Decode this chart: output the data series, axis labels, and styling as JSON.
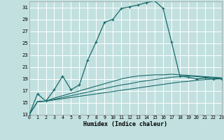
{
  "title": "",
  "xlabel": "Humidex (Indice chaleur)",
  "bg_color": "#c2e0e0",
  "grid_color": "#ffffff",
  "line_color": "#1a6b6b",
  "xlim": [
    0,
    23
  ],
  "ylim": [
    13,
    32
  ],
  "yticks": [
    13,
    15,
    17,
    19,
    21,
    23,
    25,
    27,
    29,
    31
  ],
  "xticks": [
    0,
    1,
    2,
    3,
    4,
    5,
    6,
    7,
    8,
    9,
    10,
    11,
    12,
    13,
    14,
    15,
    16,
    17,
    18,
    19,
    20,
    21,
    22,
    23
  ],
  "main_x": [
    0,
    1,
    2,
    3,
    4,
    5,
    6,
    7,
    8,
    9,
    10,
    11,
    12,
    13,
    14,
    15,
    16,
    17,
    18,
    19,
    20,
    21,
    22,
    23
  ],
  "main_y": [
    13.0,
    16.5,
    15.3,
    17.2,
    19.5,
    17.2,
    18.0,
    22.2,
    25.2,
    28.5,
    29.0,
    30.8,
    31.1,
    31.4,
    31.8,
    32.1,
    30.8,
    25.2,
    19.5,
    19.3,
    19.0,
    19.2,
    19.0,
    19.0
  ],
  "flat_lines": [
    [
      13.0,
      15.2,
      15.3,
      15.5,
      15.7,
      15.9,
      16.1,
      16.3,
      16.5,
      16.7,
      16.9,
      17.1,
      17.3,
      17.5,
      17.7,
      17.9,
      18.1,
      18.3,
      18.5,
      18.6,
      18.8,
      18.9,
      19.0,
      19.1
    ],
    [
      13.0,
      15.2,
      15.3,
      15.6,
      15.9,
      16.2,
      16.5,
      16.8,
      17.1,
      17.4,
      17.7,
      18.0,
      18.2,
      18.5,
      18.7,
      18.9,
      19.1,
      19.3,
      19.4,
      19.5,
      19.4,
      19.3,
      19.2,
      19.1
    ],
    [
      13.0,
      15.2,
      15.3,
      15.8,
      16.2,
      16.6,
      17.0,
      17.4,
      17.8,
      18.2,
      18.6,
      19.0,
      19.3,
      19.5,
      19.6,
      19.7,
      19.7,
      19.8,
      19.7,
      19.6,
      19.5,
      19.4,
      19.3,
      19.2
    ]
  ]
}
